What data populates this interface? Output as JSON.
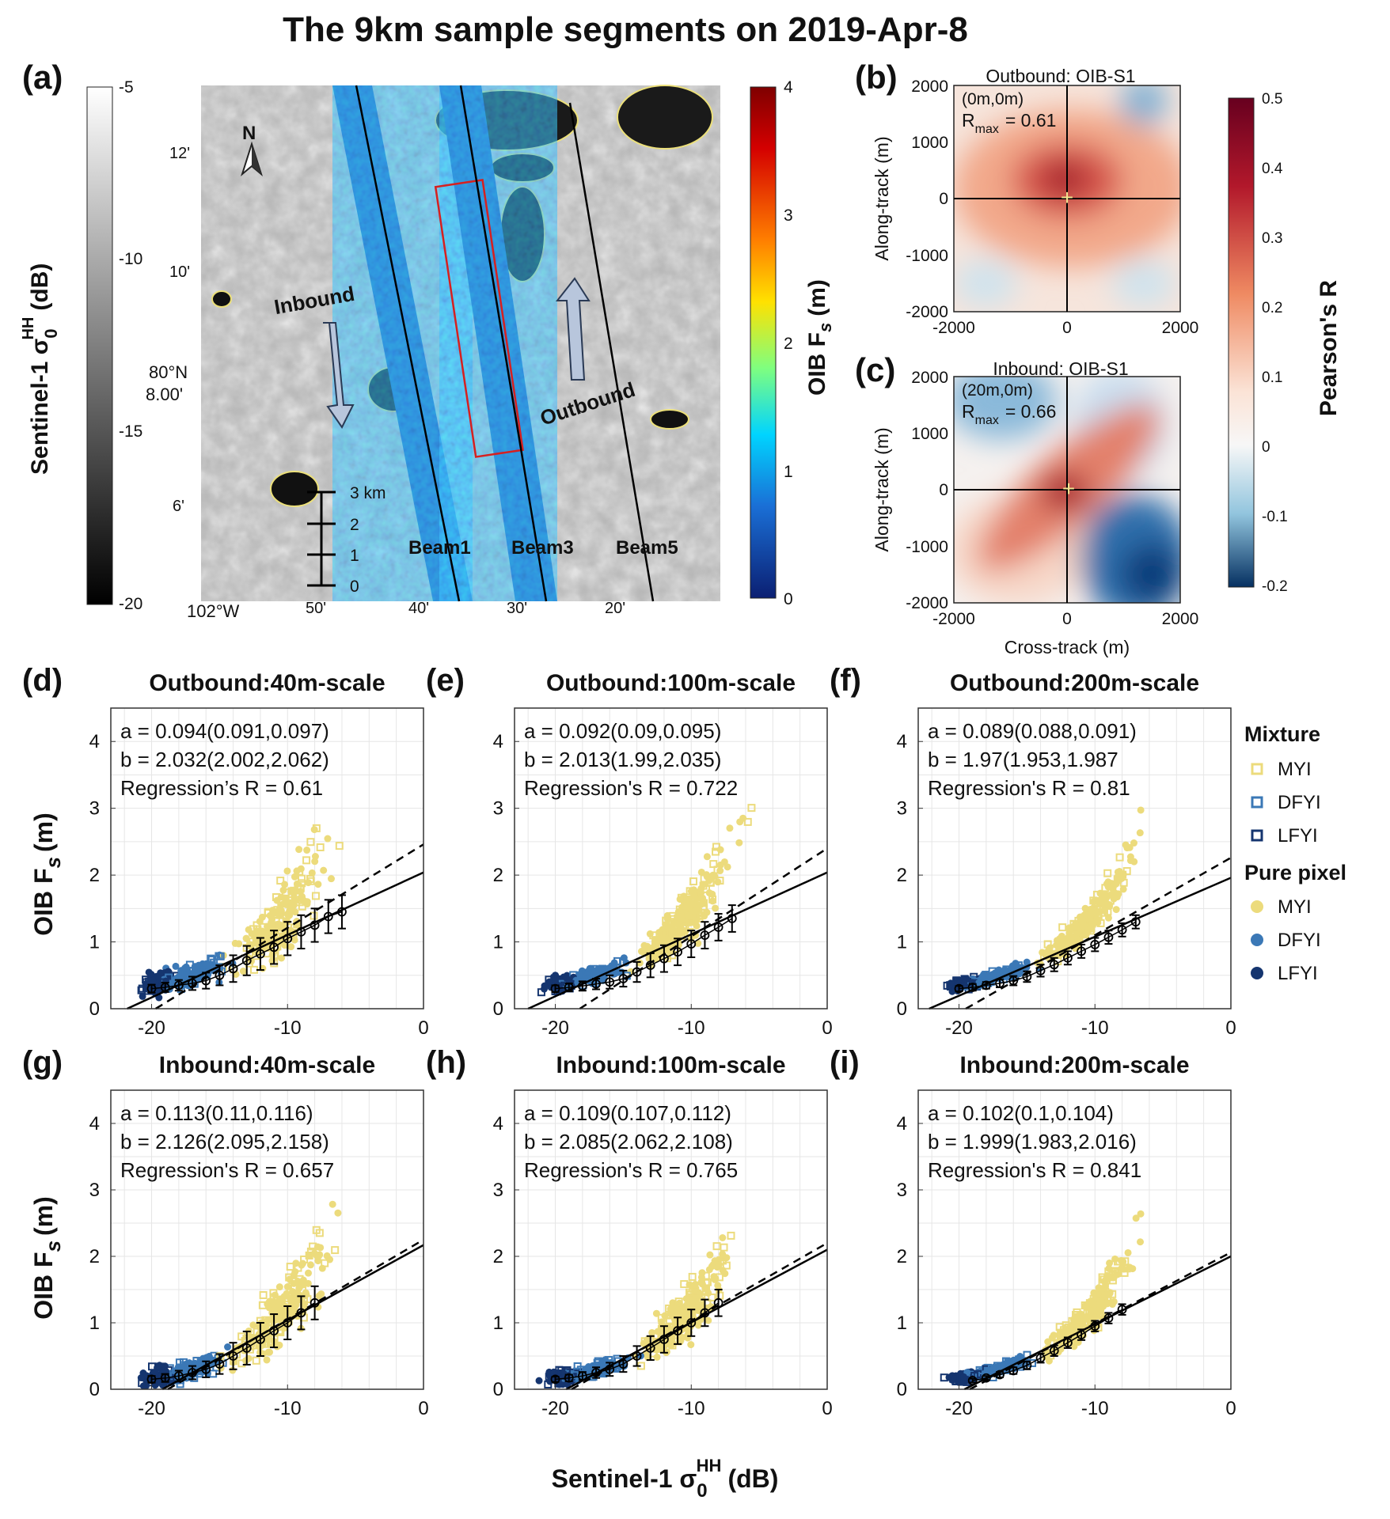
{
  "title": "The 9km sample segments on 2019-Apr-8",
  "colors": {
    "myi": "#ecdb7c",
    "dfyi": "#3b78b6",
    "lfyi": "#15356f",
    "fit": "#000000"
  },
  "panel_a": {
    "label": "(a)",
    "s1_colorbar": {
      "label": "Sentinel-1 σ",
      "label_sup": "HH",
      "label_sub": "0",
      "label_unit": "(dB)",
      "ticks": [
        "-5",
        "-10",
        "-15",
        "-20"
      ]
    },
    "oib_colorbar": {
      "label": "OIB F",
      "label_sub": "s",
      "label_unit": "(m)",
      "ticks": [
        "4",
        "3",
        "2",
        "1",
        "0"
      ]
    },
    "lat_ticks": [
      "12'",
      "10'",
      "80°N",
      "8.00'",
      "6'"
    ],
    "lon_ticks": [
      "102°W",
      "50'",
      "40'",
      "30'",
      "20'"
    ],
    "north": "N",
    "inbound": "Inbound",
    "outbound": "Outbound",
    "beams": [
      "Beam1",
      "Beam3",
      "Beam5"
    ],
    "scalebar": [
      "3 km",
      "2",
      "1",
      "0"
    ]
  },
  "panel_b": {
    "label": "(b)",
    "title": "Outbound: OIB-S1",
    "shift": "(0m,0m)",
    "rmax_label": "R",
    "rmax_sub": "max",
    "rmax_value": "= 0.61"
  },
  "panel_c": {
    "label": "(c)",
    "title": "Inbound: OIB-S1",
    "shift": "(20m,0m)",
    "rmax_label": "R",
    "rmax_sub": "max",
    "rmax_value": "= 0.66"
  },
  "corr_axes": {
    "ylabel": "Along-track (m)",
    "xlabel": "Cross-track (m)",
    "ticks": [
      "-2000",
      "-1000",
      "0",
      "1000",
      "2000"
    ],
    "xticks": [
      "-2000",
      "0",
      "2000"
    ]
  },
  "pearson_colorbar": {
    "label": "Pearson's R",
    "ticks": [
      "0.5",
      "0.4",
      "0.3",
      "0.2",
      "0.1",
      "0",
      "-0.1",
      "-0.2"
    ]
  },
  "scatter_axes": {
    "ylabel": "OIB F",
    "ylabel_sub": "s",
    "ylabel_unit": "(m)",
    "xlabel": "Sentinel-1 σ",
    "xlabel_sup": "HH",
    "xlabel_sub": "0",
    "xlabel_unit": "(dB)",
    "xticks": [
      "-20",
      "-10",
      "0"
    ],
    "yticks": [
      "0",
      "1",
      "2",
      "3",
      "4"
    ]
  },
  "legend": {
    "mixture_title": "Mixture",
    "pure_title": "Pure pixel",
    "mixture_items": [
      "MYI",
      "DFYI",
      "LFYI"
    ],
    "pure_items": [
      "MYI",
      "DFYI",
      "LFYI"
    ]
  },
  "chart_data": [
    {
      "id": "d",
      "type": "scatter",
      "label": "(d)",
      "title": "Outbound:40m-scale",
      "xlim": [
        -23,
        0
      ],
      "ylim": [
        0,
        4.5
      ],
      "a_text": "a = 0.094(0.091,0.097)",
      "b_text": "b = 2.032(2.002,2.062)",
      "r_text": "Regression’s R = 0.61",
      "fit_solid": {
        "x0": -21.8,
        "y0": 0,
        "x1": 0,
        "y1": 2.04
      },
      "fit_dashed": {
        "x0": -19.7,
        "y0": 0,
        "x1": 0,
        "y1": 2.46
      },
      "binned_x": [
        -20,
        -19,
        -18,
        -17,
        -16,
        -15,
        -14,
        -13,
        -12,
        -11,
        -10,
        -9,
        -8,
        -7,
        -6
      ],
      "binned_y": [
        0.3,
        0.32,
        0.35,
        0.38,
        0.42,
        0.5,
        0.6,
        0.72,
        0.82,
        0.92,
        1.05,
        1.15,
        1.25,
        1.38,
        1.45
      ],
      "binned_err": [
        0.06,
        0.07,
        0.08,
        0.1,
        0.12,
        0.15,
        0.2,
        0.22,
        0.24,
        0.25,
        0.25,
        0.25,
        0.25,
        0.25,
        0.25
      ]
    },
    {
      "id": "e",
      "type": "scatter",
      "label": "(e)",
      "title": "Outbound:100m-scale",
      "xlim": [
        -23,
        0
      ],
      "ylim": [
        0,
        4.5
      ],
      "a_text": "a = 0.092(0.09,0.095)",
      "b_text": "b = 2.013(1.99,2.035)",
      "r_text": "Regression's R = 0.722",
      "fit_solid": {
        "x0": -22.0,
        "y0": 0,
        "x1": 0,
        "y1": 2.04
      },
      "fit_dashed": {
        "x0": -18.2,
        "y0": 0,
        "x1": 0,
        "y1": 2.4
      },
      "binned_x": [
        -20,
        -19,
        -18,
        -17,
        -16,
        -15,
        -14,
        -13,
        -12,
        -11,
        -10,
        -9,
        -8,
        -7
      ],
      "binned_y": [
        0.3,
        0.32,
        0.34,
        0.37,
        0.4,
        0.45,
        0.55,
        0.65,
        0.75,
        0.85,
        0.97,
        1.1,
        1.22,
        1.35
      ],
      "binned_err": [
        0.05,
        0.06,
        0.07,
        0.08,
        0.1,
        0.12,
        0.15,
        0.18,
        0.2,
        0.2,
        0.2,
        0.2,
        0.2,
        0.2
      ]
    },
    {
      "id": "f",
      "type": "scatter",
      "label": "(f)",
      "title": "Outbound:200m-scale",
      "xlim": [
        -23,
        0
      ],
      "ylim": [
        0,
        4.5
      ],
      "a_text": "a = 0.089(0.088,0.091)",
      "b_text": "b = 1.97(1.953,1.987",
      "r_text": "Regression's R = 0.81",
      "fit_solid": {
        "x0": -22.2,
        "y0": 0,
        "x1": 0,
        "y1": 1.96
      },
      "fit_dashed": {
        "x0": -19.5,
        "y0": 0,
        "x1": 0,
        "y1": 2.26
      },
      "binned_x": [
        -20,
        -19,
        -18,
        -17,
        -16,
        -15,
        -14,
        -13,
        -12,
        -11,
        -10,
        -9,
        -8,
        -7
      ],
      "binned_y": [
        0.3,
        0.32,
        0.35,
        0.38,
        0.42,
        0.48,
        0.57,
        0.66,
        0.76,
        0.86,
        0.96,
        1.07,
        1.18,
        1.3
      ],
      "binned_err": [
        0.04,
        0.05,
        0.05,
        0.06,
        0.07,
        0.08,
        0.09,
        0.1,
        0.1,
        0.1,
        0.1,
        0.1,
        0.1,
        0.1
      ]
    },
    {
      "id": "g",
      "type": "scatter",
      "label": "(g)",
      "title": "Inbound:40m-scale",
      "xlim": [
        -23,
        0
      ],
      "ylim": [
        0,
        4.5
      ],
      "a_text": "a = 0.113(0.11,0.116)",
      "b_text": "b = 2.126(2.095,2.158)",
      "r_text": "Regression's R = 0.657",
      "fit_solid": {
        "x0": -19.2,
        "y0": 0,
        "x1": 0,
        "y1": 2.17
      },
      "fit_dashed": {
        "x0": -18.8,
        "y0": 0,
        "x1": 0,
        "y1": 2.25
      },
      "binned_x": [
        -20,
        -19,
        -18,
        -17,
        -16,
        -15,
        -14,
        -13,
        -12,
        -11,
        -10,
        -9,
        -8
      ],
      "binned_y": [
        0.15,
        0.17,
        0.2,
        0.25,
        0.3,
        0.38,
        0.5,
        0.62,
        0.75,
        0.88,
        1.0,
        1.15,
        1.3
      ],
      "binned_err": [
        0.05,
        0.06,
        0.08,
        0.1,
        0.12,
        0.15,
        0.2,
        0.25,
        0.25,
        0.25,
        0.25,
        0.25,
        0.25
      ]
    },
    {
      "id": "h",
      "type": "scatter",
      "label": "(h)",
      "title": "Inbound:100m-scale",
      "xlim": [
        -23,
        0
      ],
      "ylim": [
        0,
        4.5
      ],
      "a_text": "a = 0.109(0.107,0.112)",
      "b_text": "b = 2.085(2.062,2.108)",
      "r_text": "Regression's R = 0.765",
      "fit_solid": {
        "x0": -19.2,
        "y0": 0,
        "x1": 0,
        "y1": 2.1
      },
      "fit_dashed": {
        "x0": -18.8,
        "y0": 0,
        "x1": 0,
        "y1": 2.2
      },
      "binned_x": [
        -20,
        -19,
        -18,
        -17,
        -16,
        -15,
        -14,
        -13,
        -12,
        -11,
        -10,
        -9,
        -8
      ],
      "binned_y": [
        0.15,
        0.17,
        0.2,
        0.25,
        0.3,
        0.38,
        0.5,
        0.62,
        0.75,
        0.88,
        1.0,
        1.15,
        1.3
      ],
      "binned_err": [
        0.04,
        0.05,
        0.06,
        0.08,
        0.1,
        0.12,
        0.15,
        0.18,
        0.2,
        0.2,
        0.2,
        0.2,
        0.2
      ]
    },
    {
      "id": "i",
      "type": "scatter",
      "label": "(i)",
      "title": "Inbound:200m-scale",
      "xlim": [
        -23,
        0
      ],
      "ylim": [
        0,
        4.5
      ],
      "a_text": "a = 0.102(0.1,0.104)",
      "b_text": "b = 1.999(1.983,2.016)",
      "r_text": "Regression's R = 0.841",
      "fit_solid": {
        "x0": -19.6,
        "y0": 0,
        "x1": 0,
        "y1": 2.0
      },
      "fit_dashed": {
        "x0": -19.2,
        "y0": 0,
        "x1": 0,
        "y1": 2.06
      },
      "binned_x": [
        -19,
        -18,
        -17,
        -16,
        -15,
        -14,
        -13,
        -12,
        -11,
        -10,
        -9,
        -8
      ],
      "binned_y": [
        0.13,
        0.17,
        0.22,
        0.28,
        0.36,
        0.47,
        0.58,
        0.7,
        0.82,
        0.95,
        1.07,
        1.2
      ],
      "binned_err": [
        0.03,
        0.03,
        0.04,
        0.05,
        0.06,
        0.07,
        0.08,
        0.08,
        0.08,
        0.08,
        0.08,
        0.08
      ]
    }
  ]
}
